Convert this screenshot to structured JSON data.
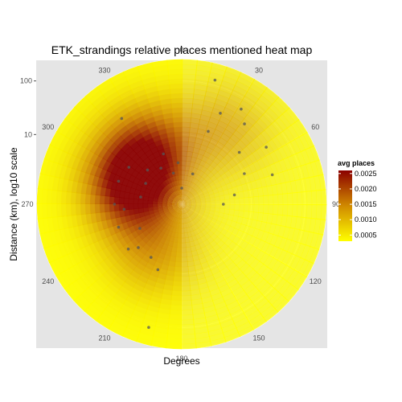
{
  "chart_data": {
    "type": "heatmap",
    "coord": "polar",
    "title": "ETK_strandings relative places mentioned heat map",
    "xlabel": "Degrees",
    "ylabel": "Distance (km), log10 scale",
    "angle_ticks": [
      0,
      30,
      60,
      90,
      120,
      150,
      180,
      210,
      240,
      270,
      300,
      330
    ],
    "radius_ticks": [
      {
        "value": 10,
        "label": "10"
      },
      {
        "value": 100,
        "label": "100"
      }
    ],
    "legend": {
      "title": "avg places",
      "position": "right",
      "range": [
        0.0003,
        0.0026
      ],
      "breaks": [
        0.0005,
        0.001,
        0.0015,
        0.002,
        0.0025
      ],
      "labels": [
        "0.0005",
        "0.0010",
        "0.0015",
        "0.0020",
        "0.0025"
      ],
      "low_color": "#ffff00",
      "high_color": "#8b0000"
    },
    "density_peaks": [
      {
        "angle": 290,
        "distance": 5,
        "value": 0.0026
      },
      {
        "angle": 330,
        "distance": 8,
        "value": 0.0018
      },
      {
        "angle": 210,
        "distance": 5,
        "value": 0.0012
      },
      {
        "angle": 30,
        "distance": 20,
        "value": 0.0011
      }
    ],
    "points": [
      {
        "angle": 15,
        "distance": 125
      },
      {
        "angle": 325,
        "distance": 45
      },
      {
        "angle": 20,
        "distance": 14
      },
      {
        "angle": 23,
        "distance": 35
      },
      {
        "angle": 32,
        "distance": 62
      },
      {
        "angle": 38,
        "distance": 40
      },
      {
        "angle": 56,
        "distance": 40
      },
      {
        "angle": 72,
        "distance": 30
      },
      {
        "angle": 48,
        "distance": 14
      },
      {
        "angle": 64,
        "distance": 10
      },
      {
        "angle": 80,
        "distance": 5
      },
      {
        "angle": 90,
        "distance": 3
      },
      {
        "angle": 340,
        "distance": 5
      },
      {
        "angle": 355,
        "distance": 3
      },
      {
        "angle": 0,
        "distance": 1
      },
      {
        "angle": 330,
        "distance": 3
      },
      {
        "angle": 315,
        "distance": 4
      },
      {
        "angle": 305,
        "distance": 8
      },
      {
        "angle": 290,
        "distance": 9
      },
      {
        "angle": 270,
        "distance": 9
      },
      {
        "angle": 250,
        "distance": 9
      },
      {
        "angle": 300,
        "distance": 3
      },
      {
        "angle": 280,
        "distance": 3
      },
      {
        "angle": 240,
        "distance": 4
      },
      {
        "angle": 225,
        "distance": 7
      },
      {
        "angle": 210,
        "distance": 7
      },
      {
        "angle": 200,
        "distance": 10
      },
      {
        "angle": 195,
        "distance": 120
      },
      {
        "angle": 345,
        "distance": 2
      },
      {
        "angle": 20,
        "distance": 2
      },
      {
        "angle": 265,
        "distance": 6
      },
      {
        "angle": 230,
        "distance": 10
      }
    ]
  }
}
